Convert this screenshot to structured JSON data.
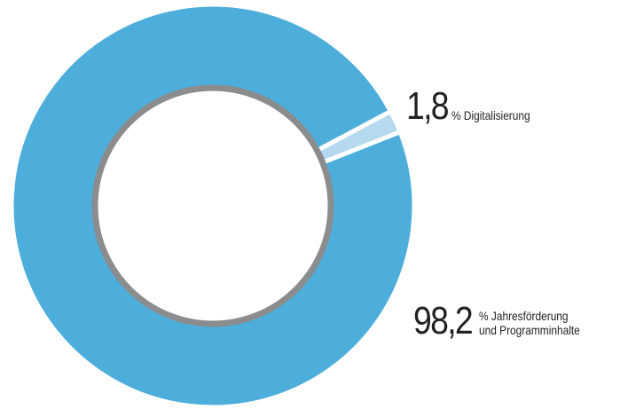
{
  "chart_data": {
    "type": "donut",
    "categories": [
      "% Digitalisierung",
      "% Jahresförderung und Programminhalte"
    ],
    "values": [
      1.8,
      98.2
    ],
    "value_labels": [
      "1,8",
      "98,2"
    ],
    "colors": [
      "#b5d9ef",
      "#4daedb"
    ]
  }
}
